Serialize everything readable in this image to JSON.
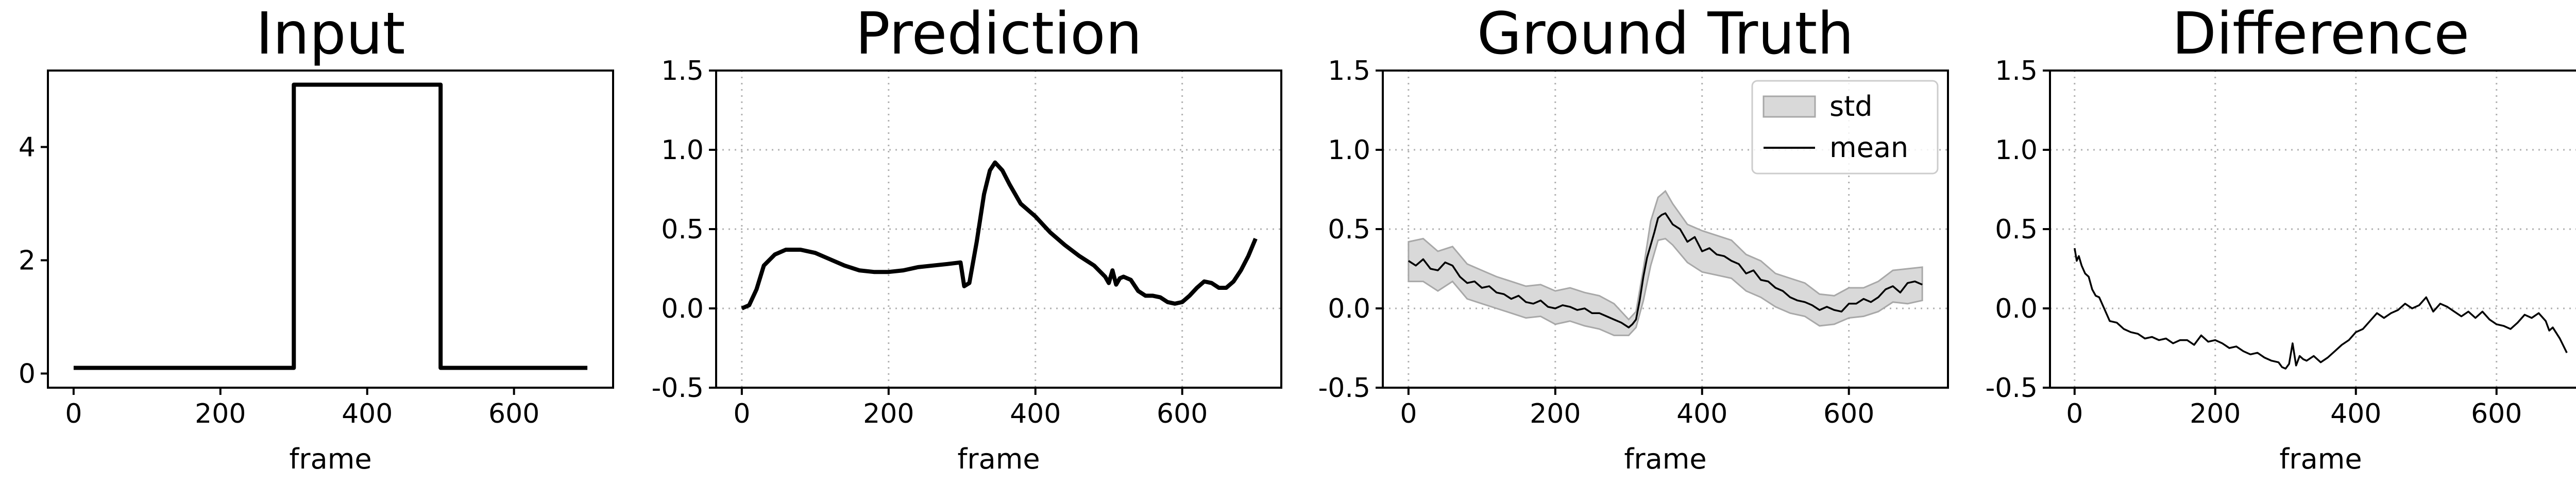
{
  "chart_data": [
    {
      "type": "line",
      "title": "Input",
      "xlabel": "frame",
      "ylabel": "",
      "xlim": [
        -35,
        735
      ],
      "ylim": [
        -0.25,
        5.35
      ],
      "xticks": [
        0,
        200,
        400,
        600
      ],
      "yticks": [
        0,
        2,
        4
      ],
      "grid": false,
      "series": [
        {
          "x": [
            0,
            300,
            300,
            500,
            500,
            700
          ],
          "y": [
            0.1,
            0.1,
            5.1,
            5.1,
            0.1,
            0.1
          ],
          "color": "#000000"
        }
      ]
    },
    {
      "type": "line",
      "title": "Prediction",
      "xlabel": "frame",
      "ylabel": "",
      "xlim": [
        -35,
        735
      ],
      "ylim": [
        -0.5,
        1.5
      ],
      "xticks": [
        0,
        200,
        400,
        600
      ],
      "yticks": [
        -0.5,
        0.0,
        0.5,
        1.0,
        1.5
      ],
      "grid": true,
      "series": [
        {
          "x": [
            0,
            10,
            20,
            30,
            45,
            60,
            80,
            100,
            120,
            140,
            160,
            180,
            200,
            220,
            240,
            260,
            280,
            298,
            303,
            310,
            320,
            330,
            338,
            345,
            355,
            365,
            380,
            400,
            420,
            440,
            460,
            480,
            495,
            500,
            505,
            510,
            515,
            520,
            530,
            540,
            550,
            560,
            570,
            580,
            590,
            600,
            610,
            620,
            630,
            640,
            650,
            660,
            670,
            680,
            690,
            700
          ],
          "y": [
            0.0,
            0.02,
            0.12,
            0.27,
            0.34,
            0.37,
            0.37,
            0.35,
            0.31,
            0.27,
            0.24,
            0.23,
            0.23,
            0.24,
            0.26,
            0.27,
            0.28,
            0.29,
            0.14,
            0.16,
            0.42,
            0.72,
            0.87,
            0.92,
            0.87,
            0.78,
            0.66,
            0.58,
            0.48,
            0.4,
            0.33,
            0.27,
            0.2,
            0.16,
            0.24,
            0.15,
            0.19,
            0.2,
            0.18,
            0.11,
            0.08,
            0.08,
            0.07,
            0.04,
            0.03,
            0.04,
            0.08,
            0.13,
            0.17,
            0.16,
            0.13,
            0.13,
            0.17,
            0.24,
            0.33,
            0.44
          ],
          "color": "#000000"
        }
      ]
    },
    {
      "type": "area",
      "title": "Ground Truth",
      "xlabel": "frame",
      "ylabel": "",
      "xlim": [
        -35,
        735
      ],
      "ylim": [
        -0.5,
        1.5
      ],
      "xticks": [
        0,
        200,
        400,
        600
      ],
      "yticks": [
        -0.5,
        0.0,
        0.5,
        1.0,
        1.5
      ],
      "grid": true,
      "legend": "top-right",
      "series": [
        {
          "name": "std",
          "kind": "band",
          "x": [
            0,
            20,
            40,
            60,
            80,
            100,
            120,
            140,
            160,
            180,
            200,
            220,
            240,
            260,
            280,
            300,
            310,
            320,
            330,
            340,
            350,
            360,
            380,
            400,
            420,
            440,
            460,
            480,
            500,
            520,
            540,
            560,
            580,
            600,
            620,
            640,
            660,
            680,
            700
          ],
          "lower": [
            0.17,
            0.17,
            0.11,
            0.17,
            0.06,
            0.03,
            0.0,
            -0.03,
            -0.06,
            -0.05,
            -0.1,
            -0.08,
            -0.11,
            -0.13,
            -0.17,
            -0.17,
            -0.12,
            0.05,
            0.27,
            0.43,
            0.44,
            0.4,
            0.29,
            0.23,
            0.21,
            0.19,
            0.11,
            0.07,
            0.01,
            -0.03,
            -0.05,
            -0.11,
            -0.1,
            -0.06,
            -0.05,
            -0.02,
            0.04,
            0.03,
            0.05
          ],
          "upper": [
            0.42,
            0.44,
            0.36,
            0.39,
            0.28,
            0.24,
            0.2,
            0.17,
            0.14,
            0.15,
            0.11,
            0.13,
            0.1,
            0.08,
            0.03,
            -0.07,
            -0.02,
            0.25,
            0.55,
            0.7,
            0.74,
            0.66,
            0.53,
            0.49,
            0.46,
            0.43,
            0.34,
            0.3,
            0.22,
            0.19,
            0.16,
            0.09,
            0.08,
            0.13,
            0.13,
            0.17,
            0.24,
            0.25,
            0.26
          ],
          "color": "#d9d9d9"
        },
        {
          "name": "mean",
          "kind": "line",
          "x": [
            0,
            10,
            20,
            30,
            40,
            50,
            60,
            70,
            80,
            90,
            100,
            110,
            120,
            130,
            140,
            150,
            160,
            170,
            180,
            190,
            200,
            210,
            220,
            230,
            240,
            250,
            260,
            270,
            280,
            290,
            300,
            305,
            310,
            315,
            320,
            325,
            330,
            335,
            340,
            345,
            350,
            360,
            370,
            380,
            390,
            400,
            410,
            420,
            430,
            440,
            450,
            460,
            470,
            480,
            490,
            500,
            510,
            520,
            530,
            540,
            550,
            560,
            570,
            580,
            590,
            600,
            610,
            620,
            630,
            640,
            650,
            660,
            670,
            680,
            690,
            700
          ],
          "y": [
            0.3,
            0.27,
            0.31,
            0.25,
            0.24,
            0.29,
            0.27,
            0.2,
            0.16,
            0.17,
            0.13,
            0.14,
            0.1,
            0.09,
            0.06,
            0.08,
            0.04,
            0.03,
            0.05,
            0.01,
            0.0,
            0.02,
            0.01,
            -0.01,
            0.0,
            -0.03,
            -0.03,
            -0.05,
            -0.07,
            -0.09,
            -0.12,
            -0.1,
            -0.07,
            0.05,
            0.2,
            0.32,
            0.4,
            0.48,
            0.57,
            0.59,
            0.6,
            0.53,
            0.5,
            0.42,
            0.45,
            0.36,
            0.38,
            0.34,
            0.33,
            0.3,
            0.28,
            0.22,
            0.24,
            0.18,
            0.17,
            0.13,
            0.11,
            0.07,
            0.05,
            0.04,
            0.02,
            -0.01,
            0.01,
            -0.01,
            -0.02,
            0.03,
            0.03,
            0.06,
            0.04,
            0.07,
            0.12,
            0.14,
            0.1,
            0.16,
            0.17,
            0.15
          ],
          "color": "#000000"
        }
      ]
    },
    {
      "type": "line",
      "title": "Difference",
      "xlabel": "frame",
      "ylabel": "",
      "xlim": [
        -35,
        735
      ],
      "ylim": [
        -0.5,
        1.5
      ],
      "xticks": [
        0,
        200,
        400,
        600
      ],
      "yticks": [
        -0.5,
        0.0,
        0.5,
        1.0,
        1.5
      ],
      "grid": true,
      "series": [
        {
          "x": [
            0,
            3,
            6,
            10,
            15,
            20,
            25,
            30,
            35,
            40,
            45,
            50,
            60,
            70,
            80,
            90,
            100,
            110,
            120,
            130,
            140,
            150,
            160,
            170,
            180,
            190,
            200,
            210,
            220,
            230,
            240,
            250,
            260,
            270,
            280,
            290,
            295,
            300,
            305,
            310,
            315,
            320,
            325,
            330,
            340,
            350,
            360,
            370,
            380,
            390,
            400,
            410,
            420,
            430,
            440,
            450,
            460,
            470,
            480,
            490,
            500,
            510,
            520,
            530,
            540,
            550,
            560,
            570,
            580,
            590,
            600,
            610,
            620,
            630,
            640,
            650,
            660,
            670,
            675,
            680,
            690,
            700
          ],
          "y": [
            0.38,
            0.3,
            0.33,
            0.27,
            0.22,
            0.2,
            0.12,
            0.08,
            0.07,
            0.02,
            -0.03,
            -0.08,
            -0.09,
            -0.13,
            -0.15,
            -0.16,
            -0.19,
            -0.18,
            -0.2,
            -0.19,
            -0.22,
            -0.2,
            -0.2,
            -0.23,
            -0.17,
            -0.21,
            -0.2,
            -0.22,
            -0.25,
            -0.24,
            -0.27,
            -0.29,
            -0.28,
            -0.31,
            -0.33,
            -0.34,
            -0.37,
            -0.38,
            -0.35,
            -0.22,
            -0.36,
            -0.3,
            -0.32,
            -0.33,
            -0.3,
            -0.34,
            -0.31,
            -0.27,
            -0.23,
            -0.2,
            -0.15,
            -0.13,
            -0.08,
            -0.03,
            -0.06,
            -0.03,
            -0.01,
            0.03,
            0.0,
            0.02,
            0.07,
            -0.02,
            0.03,
            0.01,
            -0.02,
            -0.05,
            -0.02,
            -0.06,
            -0.02,
            -0.07,
            -0.1,
            -0.11,
            -0.13,
            -0.09,
            -0.04,
            -0.06,
            -0.03,
            -0.08,
            -0.14,
            -0.12,
            -0.19,
            -0.28
          ],
          "color": "#000000"
        }
      ]
    }
  ]
}
